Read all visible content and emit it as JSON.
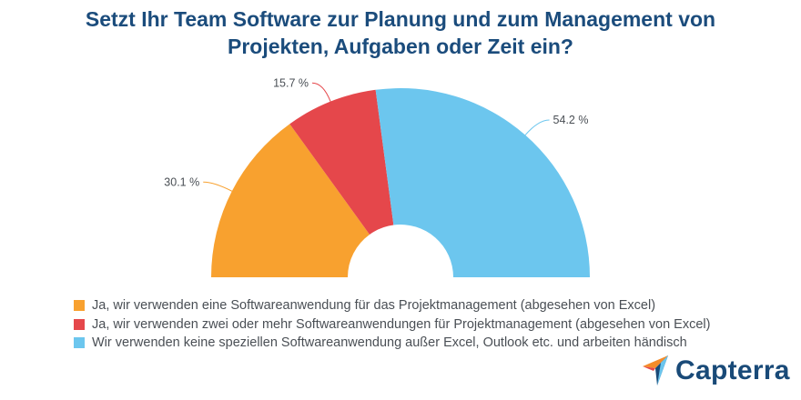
{
  "chart_data": {
    "type": "pie",
    "variant": "semi-donut",
    "title_lines": [
      "Setzt Ihr Team Software zur Planung und zum Management von",
      "Projekten, Aufgaben oder Zeit ein?"
    ],
    "slices": [
      {
        "name": "Ja, wir verwenden eine Softwareanwendung für das Projektmanagement (abgesehen von Excel)",
        "value": 30.1,
        "label": "30.1 %",
        "color": "#f8a12f"
      },
      {
        "name": "Ja, wir verwenden zwei oder mehr Softwareanwendungen für Projektmanagement (abgesehen von Excel)",
        "value": 15.7,
        "label": "15.7 %",
        "color": "#e5474b"
      },
      {
        "name": "Wir verwenden keine speziellen Softwareanwendung außer Excel, Outlook etc. und arbeiten händisch",
        "value": 54.2,
        "label": "54.2 %",
        "color": "#6cc6ee"
      }
    ],
    "legend_position": "bottom-left"
  },
  "logo": {
    "text": "Capterra"
  }
}
